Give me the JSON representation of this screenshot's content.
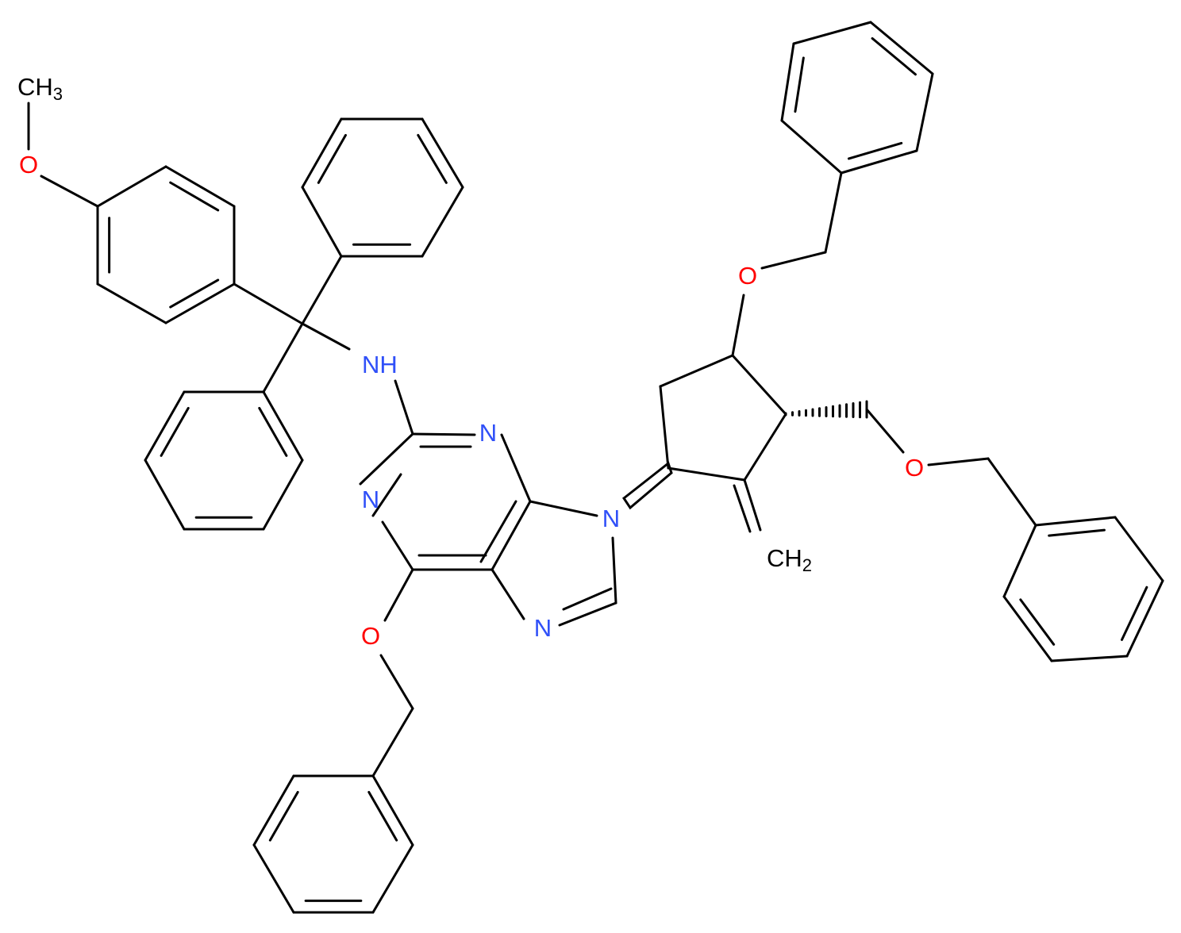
{
  "labels": [
    {
      "text": "CH",
      "sub": "3"
    },
    {
      "text": "O"
    },
    {
      "text": "NH"
    },
    {
      "text": "N"
    },
    {
      "text": "N"
    },
    {
      "text": "N"
    },
    {
      "text": "N"
    },
    {
      "text": "O"
    },
    {
      "text": "O"
    },
    {
      "text": "O"
    },
    {
      "text": "CH",
      "sub": "2"
    }
  ]
}
